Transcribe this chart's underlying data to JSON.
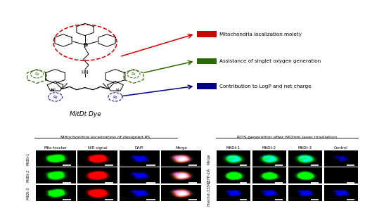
{
  "fig_width": 5.0,
  "fig_height": 2.77,
  "bg_color": "#ffffff",
  "legend_items": [
    {
      "label": "Mitochondria localization moiety",
      "color": "#cc0000"
    },
    {
      "label": "Assistance of singlet oxygen generation",
      "color": "#2d6a00"
    },
    {
      "label": "Contribution to LogP and net charge",
      "color": "#00008b"
    }
  ],
  "left_panel_title": "Mitochondria localization of designed PS",
  "right_panel_title": "ROS generation after 662nm laser irradiation",
  "left_col_labels": [
    "Mito-tracker",
    "NIR signal",
    "DAPI",
    "Merge"
  ],
  "left_row_labels": [
    "MitDt-1",
    "MitDt-2",
    "MitDt-3"
  ],
  "right_col_labels": [
    "MitDt-1",
    "MitDt-2",
    "MitDt-3",
    "Control"
  ],
  "right_row_labels": [
    "Merge",
    "DCFH-DA",
    "Hoechst-33342"
  ],
  "mito_dye_label": "MitDt Dye"
}
